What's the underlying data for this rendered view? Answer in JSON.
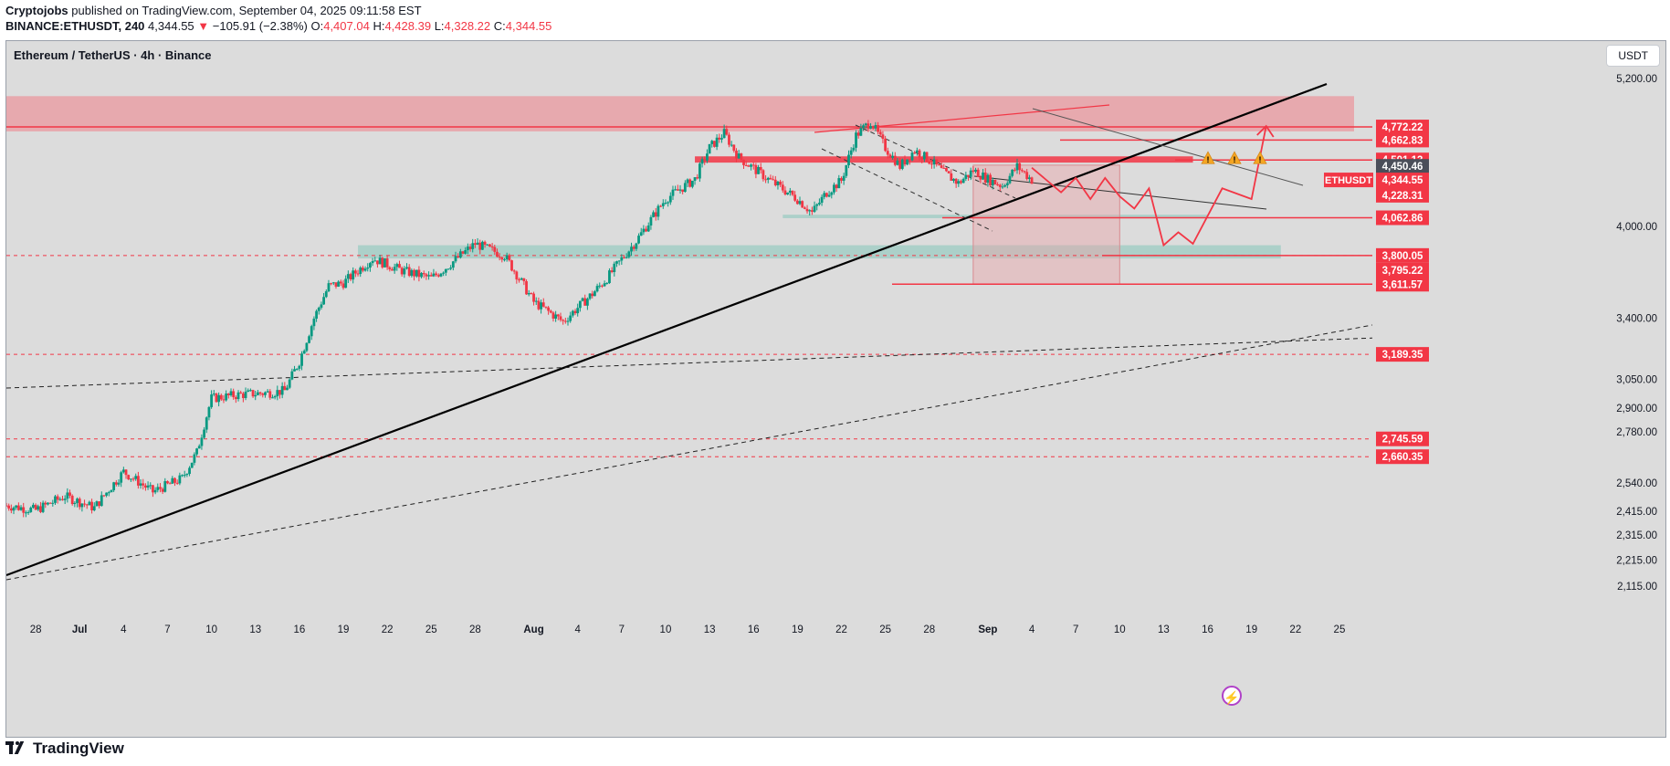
{
  "header": {
    "author": "Cryptojobs",
    "published": "published on TradingView.com, September 04, 2025 09:11:58 EST",
    "symbol": "BINANCE:ETHUSDT, 240",
    "last": "4,344.55",
    "change_arrow": "▼",
    "change": "−105.91 (−2.38%)",
    "o_label": "O:",
    "o": "4,407.04",
    "h_label": "H:",
    "h": "4,428.39",
    "l_label": "L:",
    "l": "4,328.22",
    "c_label": "C:",
    "c": "4,344.55"
  },
  "panel": {
    "title": "Ethereum / TetherUS · 4h · Binance",
    "currency": "USDT"
  },
  "footer": {
    "brand": "TradingView"
  },
  "colors": {
    "background": "#dcdcdc",
    "up": "#089981",
    "down": "#f23645",
    "zone_red": "#e8a3a8",
    "zone_green": "#a6cec7",
    "label_red": "#f23645",
    "label_dark": "#4a4e59"
  },
  "chart_data": {
    "type": "candlestick",
    "title": "Ethereum / TetherUS · 4h · Binance",
    "x_tick_labels": [
      "28",
      "Jul",
      "4",
      "7",
      "10",
      "13",
      "16",
      "19",
      "22",
      "25",
      "28",
      "Aug",
      "4",
      "7",
      "10",
      "13",
      "16",
      "19",
      "22",
      "25",
      "28",
      "Sep",
      "4",
      "7",
      "10",
      "13",
      "16",
      "19",
      "22",
      "25"
    ],
    "x_range": [
      "2025-06-26",
      "2025-09-26"
    ],
    "y_scale": "log",
    "y_range": [
      2050,
      5500
    ],
    "y_tick_labels": [
      "5,200.00",
      "4,000.00",
      "3,400.00",
      "3,050.00",
      "2,900.00",
      "2,780.00",
      "2,540.00",
      "2,415.00",
      "2,315.00",
      "2,215.00",
      "2,115.00"
    ],
    "price_labels": [
      {
        "value": "4,772.22",
        "style": "red"
      },
      {
        "value": "4,662.83",
        "style": "red"
      },
      {
        "value": "4,501.13",
        "style": "red"
      },
      {
        "value": "4,450.46",
        "style": "dark"
      },
      {
        "value": "4,344.55",
        "style": "red"
      },
      {
        "value": "01:48:03",
        "style": "red"
      },
      {
        "value": "4,228.31",
        "style": "red"
      },
      {
        "value": "4,062.86",
        "style": "red"
      },
      {
        "value": "3,800.05",
        "style": "red"
      },
      {
        "value": "3,795.22",
        "style": "red"
      },
      {
        "value": "3,611.57",
        "style": "red"
      },
      {
        "value": "3,189.35",
        "style": "red"
      },
      {
        "value": "2,745.59",
        "style": "red"
      },
      {
        "value": "2,660.35",
        "style": "red"
      }
    ],
    "symbol_tag": "ETHUSDT",
    "price_path": [
      [
        "2025-06-26",
        2440
      ],
      [
        "2025-06-28",
        2420
      ],
      [
        "2025-06-30",
        2480
      ],
      [
        "2025-07-02",
        2430
      ],
      [
        "2025-07-04",
        2590
      ],
      [
        "2025-07-06",
        2500
      ],
      [
        "2025-07-08",
        2560
      ],
      [
        "2025-07-09",
        2680
      ],
      [
        "2025-07-10",
        2950
      ],
      [
        "2025-07-12",
        2970
      ],
      [
        "2025-07-14",
        2980
      ],
      [
        "2025-07-15",
        2990
      ],
      [
        "2025-07-16",
        3150
      ],
      [
        "2025-07-17",
        3400
      ],
      [
        "2025-07-18",
        3600
      ],
      [
        "2025-07-19",
        3620
      ],
      [
        "2025-07-21",
        3780
      ],
      [
        "2025-07-23",
        3700
      ],
      [
        "2025-07-25",
        3650
      ],
      [
        "2025-07-26",
        3720
      ],
      [
        "2025-07-28",
        3880
      ],
      [
        "2025-07-30",
        3800
      ],
      [
        "2025-08-01",
        3500
      ],
      [
        "2025-08-03",
        3380
      ],
      [
        "2025-08-05",
        3550
      ],
      [
        "2025-08-06",
        3650
      ],
      [
        "2025-08-08",
        3900
      ],
      [
        "2025-08-10",
        4200
      ],
      [
        "2025-08-12",
        4350
      ],
      [
        "2025-08-13",
        4600
      ],
      [
        "2025-08-14",
        4720
      ],
      [
        "2025-08-15",
        4520
      ],
      [
        "2025-08-17",
        4350
      ],
      [
        "2025-08-19",
        4200
      ],
      [
        "2025-08-20",
        4100
      ],
      [
        "2025-08-21",
        4250
      ],
      [
        "2025-08-22",
        4340
      ],
      [
        "2025-08-23",
        4700
      ],
      [
        "2025-08-24",
        4820
      ],
      [
        "2025-08-25",
        4600
      ],
      [
        "2025-08-26",
        4450
      ],
      [
        "2025-08-27",
        4580
      ],
      [
        "2025-08-28",
        4500
      ],
      [
        "2025-08-29",
        4400
      ],
      [
        "2025-08-30",
        4320
      ],
      [
        "2025-08-31",
        4420
      ],
      [
        "2025-09-01",
        4350
      ],
      [
        "2025-09-02",
        4300
      ],
      [
        "2025-09-03",
        4450
      ],
      [
        "2025-09-04",
        4344.55
      ]
    ],
    "ohlc_last": {
      "open": 4407.04,
      "high": 4428.39,
      "low": 4328.22,
      "close": 4344.55
    },
    "projection_path": [
      [
        "2025-09-04",
        4440
      ],
      [
        "2025-09-06",
        4250
      ],
      [
        "2025-09-07",
        4360
      ],
      [
        "2025-09-08",
        4200
      ],
      [
        "2025-09-09",
        4360
      ],
      [
        "2025-09-10",
        4220
      ],
      [
        "2025-09-11",
        4130
      ],
      [
        "2025-09-12",
        4280
      ],
      [
        "2025-09-13",
        3870
      ],
      [
        "2025-09-14",
        3960
      ],
      [
        "2025-09-15",
        3880
      ],
      [
        "2025-09-17",
        4280
      ],
      [
        "2025-09-19",
        4200
      ],
      [
        "2025-09-20",
        4780
      ]
    ],
    "zones": [
      {
        "kind": "resistance",
        "from": "2025-06-26",
        "to": "2025-09-26",
        "low": 4735,
        "high": 5040,
        "color": "red"
      },
      {
        "kind": "support",
        "from": "2025-07-20",
        "to": "2025-09-21",
        "low": 3780,
        "high": 3870,
        "color": "green"
      },
      {
        "kind": "support",
        "from": "2025-08-18",
        "to": "2025-09-16",
        "low": 4060,
        "high": 4085,
        "color": "green"
      },
      {
        "kind": "target_box",
        "from": "2025-08-31",
        "to": "2025-09-10",
        "low": 3611.57,
        "high": 4460,
        "color": "red"
      },
      {
        "kind": "resistance_band",
        "from": "2025-08-12",
        "to": "2025-09-15",
        "low": 4480,
        "high": 4530,
        "color": "red"
      }
    ],
    "horizontal_levels": [
      4772.22,
      4662.83,
      4501.13,
      4450.46,
      4228.31,
      4062.86,
      3800.05,
      3611.57,
      3189.35,
      2745.59,
      2660.35
    ]
  }
}
